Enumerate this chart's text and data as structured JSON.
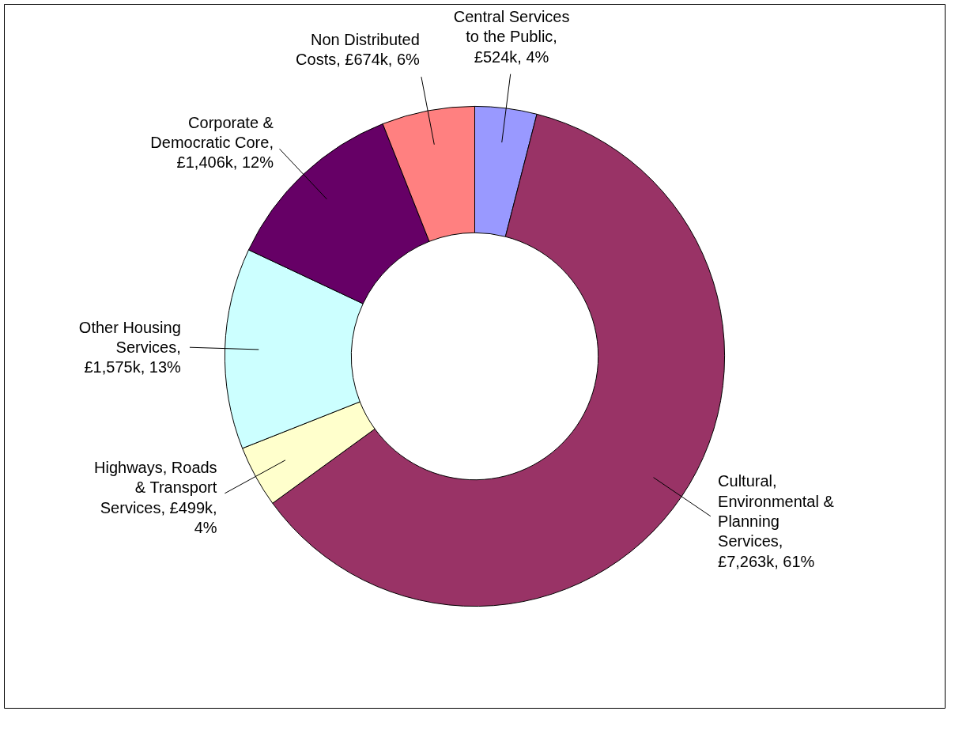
{
  "chart_data": {
    "type": "donut",
    "categories": [
      "Central Services to the Public",
      "Cultural, Environmental & Planning Services",
      "Highways, Roads & Transport Services",
      "Other Housing Services",
      "Corporate & Democratic Core",
      "Non Distributed Costs"
    ],
    "values": [
      4,
      61,
      4,
      13,
      12,
      6
    ],
    "colors": [
      "#9999ff",
      "#993366",
      "#ffffcc",
      "#ccffff",
      "#660066",
      "#ff8080"
    ],
    "value_labels": [
      ", £524k, 4%",
      ", £7,263k, 61%",
      ", £499k, 4%",
      ", £1,575k, 13%",
      ", £1,406k, 12%",
      ", £674k, 6%"
    ]
  }
}
